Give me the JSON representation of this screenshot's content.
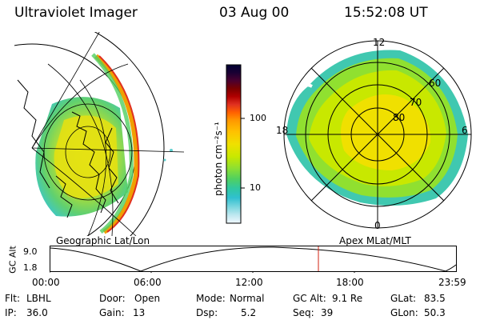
{
  "header": {
    "title": "Ultraviolet Imager",
    "date": "03 Aug 00",
    "time": "15:52:08 UT"
  },
  "left_panel": {
    "caption": "Geographic Lat/Lon"
  },
  "right_panel": {
    "caption": "Apex MLat/MLT",
    "mlt_labels": [
      "12",
      "18",
      "6",
      "0"
    ],
    "lat_labels": [
      "60",
      "70",
      "80"
    ]
  },
  "colorbar": {
    "unit_label": "photon cm⁻²s⁻¹",
    "ticks": [
      "100",
      "10"
    ],
    "colors": [
      "#000033",
      "#1a0033",
      "#4a0030",
      "#7a0000",
      "#b00000",
      "#e03020",
      "#ff6000",
      "#ff9800",
      "#ffc000",
      "#f0e000",
      "#c8e800",
      "#90e030",
      "#50d060",
      "#30c8a0",
      "#30c0d0",
      "#80d8e0",
      "#c0e8f0",
      "#f0f8ff"
    ]
  },
  "altitude_plot": {
    "ylabel": "GC Alt",
    "y_ticks": [
      "9.0",
      "1.8"
    ],
    "x_ticks": [
      "00:00",
      "06:00",
      "12:00",
      "18:00",
      "23:59"
    ]
  },
  "status": {
    "rows": [
      [
        {
          "label": "Flt:",
          "value": "LBHL"
        },
        {
          "label": "Door:",
          "value": "Open"
        },
        {
          "label": "Mode:",
          "value": "Normal"
        },
        {
          "label": "GC Alt:",
          "value": "9.1 Re"
        },
        {
          "label": "GLat:",
          "value": "83.5"
        }
      ],
      [
        {
          "label": "IP:",
          "value": "36.0"
        },
        {
          "label": "Gain:",
          "value": "13"
        },
        {
          "label": "Dsp:",
          "value": "5.2"
        },
        {
          "label": "Seq:",
          "value": "39"
        },
        {
          "label": "GLon:",
          "value": "50.3"
        }
      ]
    ]
  }
}
